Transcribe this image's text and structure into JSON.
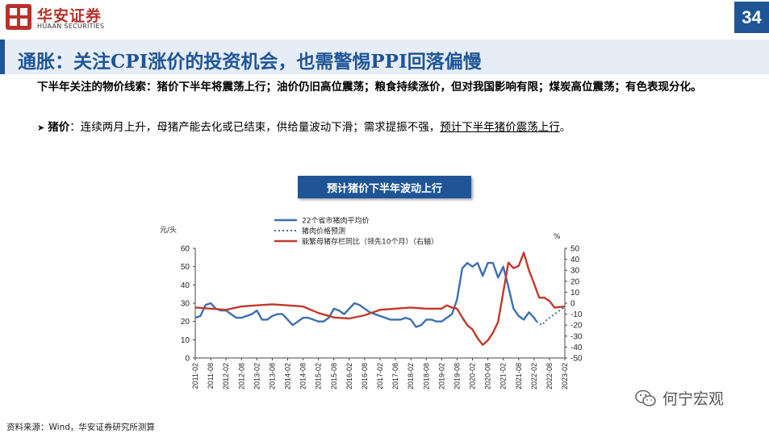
{
  "header": {
    "logo_cn": "华安证券",
    "logo_en": "HUAAN SECURITIES",
    "page_number": "34"
  },
  "title": "通胀：关注CPI涨价的投资机会，也需警惕PPI回落偏慢",
  "summary": "下半年关注的物价线索：猪价下半年将震荡上行；油价仍旧高位震荡；粮食持续涨价，但对我国影响有限；煤炭高位震荡；有色表现分化。",
  "bullet": {
    "key": "猪价",
    "text": "：连续两月上升，母猪产能去化或已结束，供给量波动下滑；需求提振不强，",
    "highlight": "预计下半年猪价震荡上行",
    "end": "。"
  },
  "chart_title": "预计猪价下半年波动上行",
  "source": "资料来源：Wind，华安证券研究所测算",
  "watermark": "何宁宏观",
  "chart_data": {
    "type": "line",
    "left_unit": "元/头",
    "right_unit": "%",
    "ylim_left": [
      0,
      60
    ],
    "yticks_left": [
      0,
      10,
      20,
      30,
      40,
      50,
      60
    ],
    "ylim_right": [
      -50,
      50
    ],
    "yticks_right": [
      -50,
      -40,
      -30,
      -20,
      -10,
      0,
      10,
      20,
      30,
      40,
      50
    ],
    "xlim": [
      "2011-02",
      "2023-02"
    ],
    "xticks": [
      "2011-02",
      "2011-08",
      "2012-02",
      "2012-08",
      "2013-02",
      "2013-08",
      "2014-02",
      "2014-08",
      "2015-02",
      "2015-08",
      "2016-02",
      "2016-08",
      "2017-02",
      "2017-08",
      "2018-02",
      "2018-08",
      "2019-02",
      "2019-08",
      "2020-02",
      "2020-08",
      "2021-02",
      "2021-08",
      "2022-02",
      "2022-08",
      "2023-02"
    ],
    "legend": [
      {
        "name": "22个省市猪肉平均价",
        "color": "#3c6fb0",
        "style": "solid"
      },
      {
        "name": "猪肉价格预测",
        "color": "#3c6fb0",
        "style": "dotted"
      },
      {
        "name": "能繁母猪存栏同比（领先10个月）（右轴）",
        "color": "#c0392b",
        "style": "solid"
      }
    ],
    "series": [
      {
        "name": "22个省市猪肉平均价",
        "axis": "left",
        "color": "#3c6fb0",
        "dash": "",
        "points": [
          [
            "2011-02",
            22
          ],
          [
            "2011-04",
            23
          ],
          [
            "2011-06",
            29
          ],
          [
            "2011-08",
            30
          ],
          [
            "2011-10",
            27
          ],
          [
            "2011-12",
            26
          ],
          [
            "2012-02",
            26
          ],
          [
            "2012-04",
            24
          ],
          [
            "2012-06",
            22
          ],
          [
            "2012-08",
            22
          ],
          [
            "2012-10",
            23
          ],
          [
            "2012-12",
            24
          ],
          [
            "2013-02",
            26
          ],
          [
            "2013-04",
            21
          ],
          [
            "2013-06",
            21
          ],
          [
            "2013-08",
            23
          ],
          [
            "2013-10",
            24
          ],
          [
            "2013-12",
            24
          ],
          [
            "2014-02",
            21
          ],
          [
            "2014-04",
            18
          ],
          [
            "2014-06",
            20
          ],
          [
            "2014-08",
            22
          ],
          [
            "2014-10",
            22
          ],
          [
            "2014-12",
            21
          ],
          [
            "2015-02",
            20
          ],
          [
            "2015-04",
            20
          ],
          [
            "2015-06",
            22
          ],
          [
            "2015-08",
            27
          ],
          [
            "2015-10",
            26
          ],
          [
            "2015-12",
            24
          ],
          [
            "2016-02",
            27
          ],
          [
            "2016-04",
            30
          ],
          [
            "2016-06",
            29
          ],
          [
            "2016-08",
            27
          ],
          [
            "2016-10",
            25
          ],
          [
            "2016-12",
            24
          ],
          [
            "2017-02",
            23
          ],
          [
            "2017-04",
            22
          ],
          [
            "2017-06",
            21
          ],
          [
            "2017-08",
            21
          ],
          [
            "2017-10",
            21
          ],
          [
            "2017-12",
            22
          ],
          [
            "2018-02",
            21
          ],
          [
            "2018-04",
            17
          ],
          [
            "2018-06",
            18
          ],
          [
            "2018-08",
            21
          ],
          [
            "2018-10",
            21
          ],
          [
            "2018-12",
            20
          ],
          [
            "2019-02",
            20
          ],
          [
            "2019-04",
            22
          ],
          [
            "2019-06",
            24
          ],
          [
            "2019-08",
            32
          ],
          [
            "2019-10",
            49
          ],
          [
            "2019-12",
            52
          ],
          [
            "2020-02",
            50
          ],
          [
            "2020-04",
            52
          ],
          [
            "2020-06",
            45
          ],
          [
            "2020-08",
            52
          ],
          [
            "2020-10",
            52
          ],
          [
            "2020-12",
            44
          ],
          [
            "2021-02",
            50
          ],
          [
            "2021-04",
            39
          ],
          [
            "2021-06",
            27
          ],
          [
            "2021-08",
            23
          ],
          [
            "2021-10",
            21
          ],
          [
            "2021-12",
            25
          ],
          [
            "2022-02",
            22
          ],
          [
            "2022-03",
            20
          ]
        ]
      },
      {
        "name": "猪肉价格预测",
        "axis": "left",
        "color": "#3c6fb0",
        "dash": "2,3",
        "points": [
          [
            "2022-03",
            20
          ],
          [
            "2022-05",
            18
          ],
          [
            "2022-07",
            21
          ],
          [
            "2022-09",
            23
          ],
          [
            "2022-11",
            25
          ],
          [
            "2023-02",
            28
          ]
        ]
      },
      {
        "name": "能繁母猪存栏同比（领先10个月）（右轴）",
        "axis": "right",
        "color": "#c0392b",
        "dash": "",
        "points": [
          [
            "2011-02",
            -4
          ],
          [
            "2011-08",
            -5
          ],
          [
            "2012-02",
            -6
          ],
          [
            "2012-08",
            -3
          ],
          [
            "2013-02",
            -2
          ],
          [
            "2013-08",
            -1
          ],
          [
            "2014-02",
            -2
          ],
          [
            "2014-08",
            -3
          ],
          [
            "2015-02",
            -9
          ],
          [
            "2015-08",
            -13
          ],
          [
            "2016-02",
            -14
          ],
          [
            "2016-08",
            -11
          ],
          [
            "2017-02",
            -6
          ],
          [
            "2017-08",
            -5
          ],
          [
            "2018-02",
            -4
          ],
          [
            "2018-08",
            -5
          ],
          [
            "2019-02",
            -5
          ],
          [
            "2019-04",
            -2
          ],
          [
            "2019-06",
            -4
          ],
          [
            "2019-08",
            -5
          ],
          [
            "2019-10",
            -13
          ],
          [
            "2019-12",
            -20
          ],
          [
            "2020-02",
            -24
          ],
          [
            "2020-04",
            -32
          ],
          [
            "2020-06",
            -38
          ],
          [
            "2020-08",
            -34
          ],
          [
            "2020-10",
            -27
          ],
          [
            "2020-12",
            -17
          ],
          [
            "2021-02",
            10
          ],
          [
            "2021-04",
            37
          ],
          [
            "2021-06",
            32
          ],
          [
            "2021-08",
            34
          ],
          [
            "2021-10",
            46
          ],
          [
            "2021-12",
            30
          ],
          [
            "2022-02",
            18
          ],
          [
            "2022-04",
            5
          ],
          [
            "2022-06",
            5
          ],
          [
            "2022-08",
            2
          ],
          [
            "2022-10",
            -4
          ],
          [
            "2023-02",
            -3
          ]
        ]
      }
    ]
  }
}
